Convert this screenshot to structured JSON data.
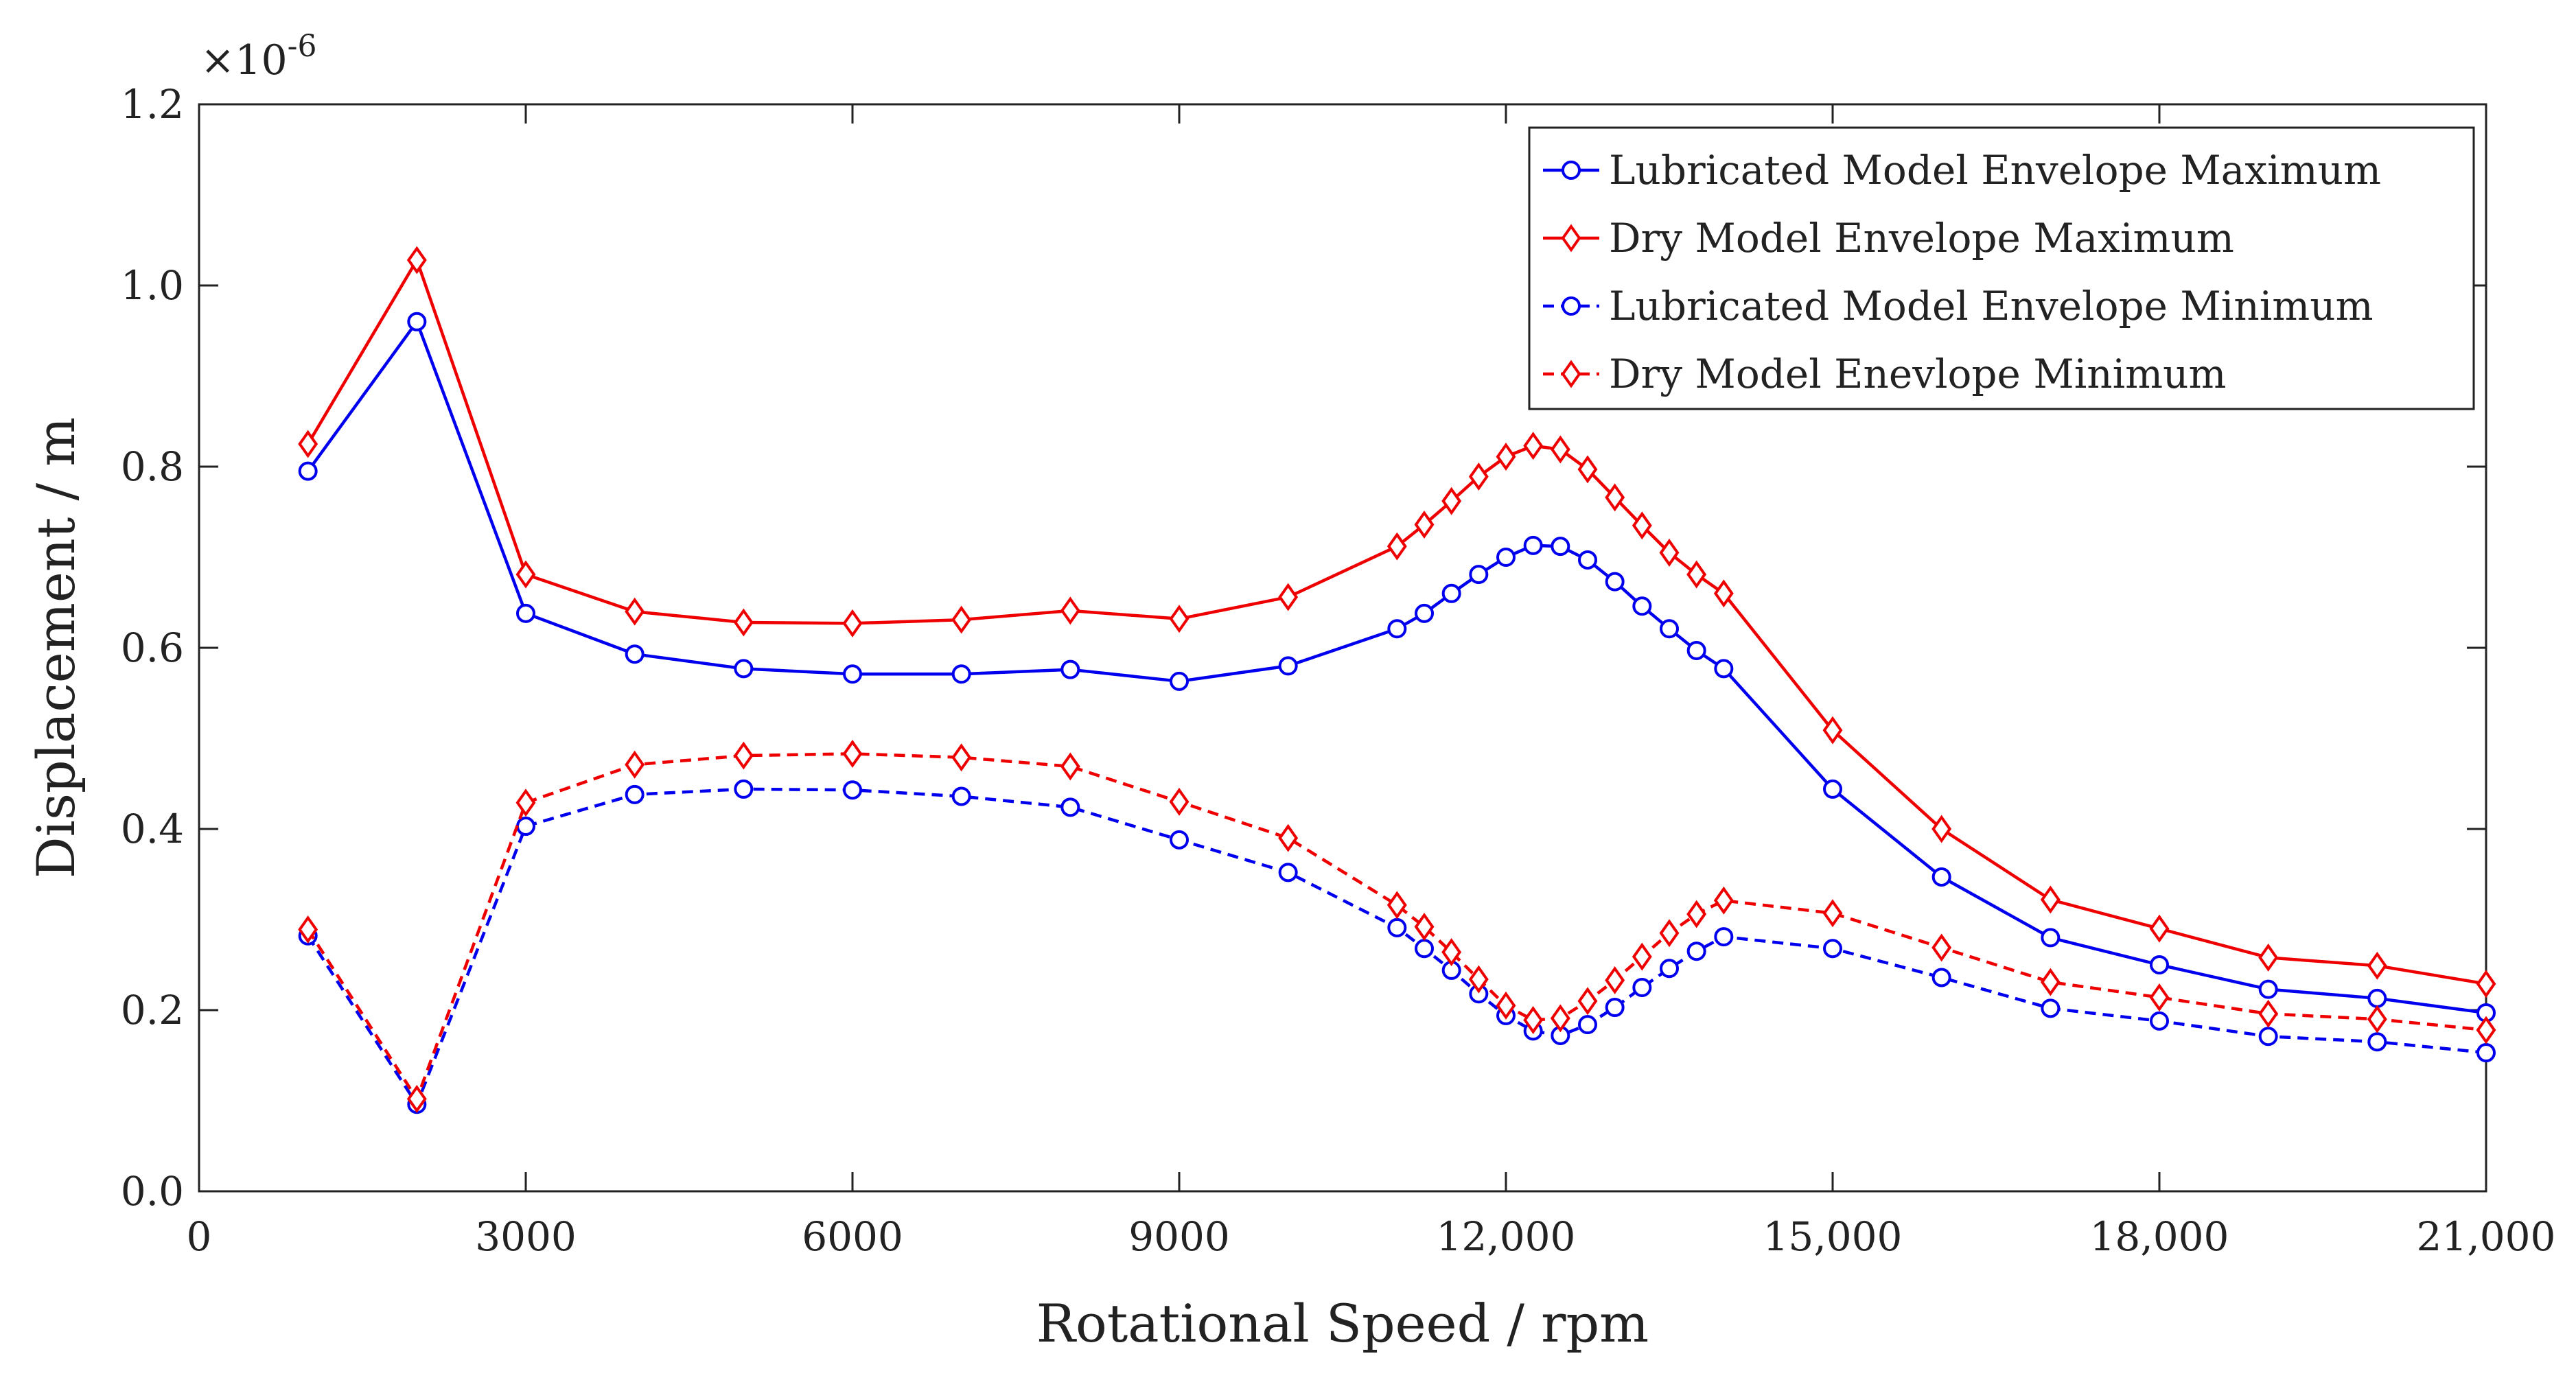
{
  "chart_data": {
    "type": "line",
    "title": "",
    "xlabel": "Rotational Speed / rpm",
    "ylabel": "Displacement / m",
    "y_exponent": {
      "base": "×10",
      "power": "-6"
    },
    "xlim": [
      0,
      21000
    ],
    "ylim": [
      0.0,
      1.2
    ],
    "xticks": [
      0,
      3000,
      6000,
      9000,
      12000,
      15000,
      18000,
      21000
    ],
    "xtick_labels": [
      "0",
      "3000",
      "6000",
      "9000",
      "12,000",
      "15,000",
      "18,000",
      "21,000"
    ],
    "yticks": [
      0.0,
      0.2,
      0.4,
      0.6,
      0.8,
      1.0,
      1.2
    ],
    "ytick_labels": [
      "0.0",
      "0.2",
      "0.4",
      "0.6",
      "0.8",
      "1.0",
      "1.2"
    ],
    "grid": false,
    "legend_position": "top-right",
    "series": [
      {
        "name": "Lubricated Model Envelope Maximum",
        "color": "#0000ee",
        "dash": "solid",
        "marker": "circle",
        "x": [
          1000,
          2000,
          3000,
          4000,
          5000,
          6000,
          7000,
          8000,
          9000,
          10000,
          11000,
          11250,
          11500,
          11750,
          12000,
          12250,
          12500,
          12750,
          13000,
          13250,
          13500,
          13750,
          14000,
          15000,
          16000,
          17000,
          18000,
          19000,
          20000,
          21000
        ],
        "y": [
          0.795,
          0.96,
          0.638,
          0.593,
          0.577,
          0.571,
          0.571,
          0.576,
          0.563,
          0.58,
          0.621,
          0.638,
          0.66,
          0.681,
          0.7,
          0.713,
          0.712,
          0.697,
          0.673,
          0.646,
          0.621,
          0.597,
          0.577,
          0.444,
          0.347,
          0.28,
          0.25,
          0.223,
          0.213,
          0.197
        ]
      },
      {
        "name": "Dry Model Envelope Maximum",
        "color": "#ee0000",
        "dash": "solid",
        "marker": "diamond",
        "x": [
          1000,
          2000,
          3000,
          4000,
          5000,
          6000,
          7000,
          8000,
          9000,
          10000,
          11000,
          11250,
          11500,
          11750,
          12000,
          12250,
          12500,
          12750,
          13000,
          13250,
          13500,
          13750,
          14000,
          15000,
          16000,
          17000,
          18000,
          19000,
          20000,
          21000
        ],
        "y": [
          0.825,
          1.028,
          0.681,
          0.64,
          0.628,
          0.627,
          0.631,
          0.641,
          0.632,
          0.656,
          0.712,
          0.736,
          0.762,
          0.789,
          0.811,
          0.823,
          0.819,
          0.797,
          0.766,
          0.735,
          0.705,
          0.681,
          0.66,
          0.509,
          0.4,
          0.322,
          0.29,
          0.258,
          0.249,
          0.229
        ]
      },
      {
        "name": "Lubricated Model Envelope Minimum",
        "color": "#0000ee",
        "dash": "dashed",
        "marker": "circle",
        "x": [
          1000,
          2000,
          3000,
          4000,
          5000,
          6000,
          7000,
          8000,
          9000,
          10000,
          11000,
          11250,
          11500,
          11750,
          12000,
          12250,
          12500,
          12750,
          13000,
          13250,
          13500,
          13750,
          14000,
          15000,
          16000,
          17000,
          18000,
          19000,
          20000,
          21000
        ],
        "y": [
          0.282,
          0.096,
          0.403,
          0.438,
          0.444,
          0.443,
          0.436,
          0.424,
          0.388,
          0.352,
          0.291,
          0.268,
          0.244,
          0.218,
          0.194,
          0.177,
          0.172,
          0.184,
          0.203,
          0.225,
          0.246,
          0.265,
          0.281,
          0.268,
          0.236,
          0.202,
          0.188,
          0.171,
          0.165,
          0.153
        ]
      },
      {
        "name": "Dry Model Enevlope Minimum",
        "color": "#ee0000",
        "dash": "dashed",
        "marker": "diamond",
        "x": [
          1000,
          2000,
          3000,
          4000,
          5000,
          6000,
          7000,
          8000,
          9000,
          10000,
          11000,
          11250,
          11500,
          11750,
          12000,
          12250,
          12500,
          12750,
          13000,
          13250,
          13500,
          13750,
          14000,
          15000,
          16000,
          17000,
          18000,
          19000,
          20000,
          21000
        ],
        "y": [
          0.289,
          0.102,
          0.429,
          0.471,
          0.481,
          0.483,
          0.479,
          0.469,
          0.43,
          0.39,
          0.316,
          0.292,
          0.264,
          0.234,
          0.205,
          0.189,
          0.191,
          0.21,
          0.233,
          0.259,
          0.285,
          0.306,
          0.321,
          0.307,
          0.269,
          0.231,
          0.214,
          0.196,
          0.19,
          0.178
        ]
      }
    ]
  }
}
